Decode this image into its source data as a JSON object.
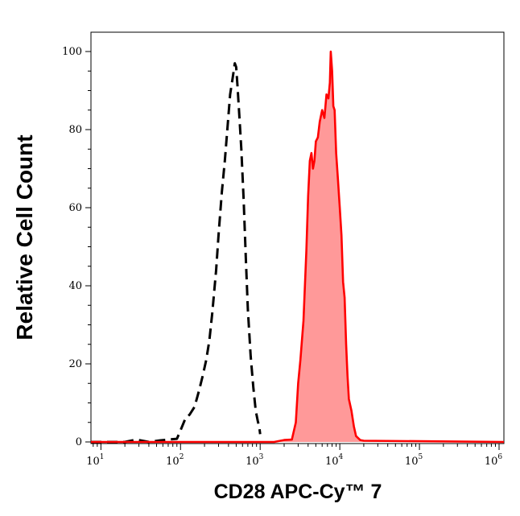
{
  "chart_data": {
    "type": "area",
    "xscale": "log",
    "xlabel": "CD28 APC-Cy™ 7",
    "ylabel": "Relative Cell Count",
    "xlim": [
      7.5,
      1150000
    ],
    "ylim": [
      0,
      100
    ],
    "grid": false,
    "x_ticks": [
      {
        "value": 10,
        "base": "10",
        "exp": "1"
      },
      {
        "value": 100,
        "base": "10",
        "exp": "2"
      },
      {
        "value": 1000,
        "base": "10",
        "exp": "3"
      },
      {
        "value": 10000,
        "base": "10",
        "exp": "4"
      },
      {
        "value": 100000,
        "base": "10",
        "exp": "5"
      },
      {
        "value": 1000000,
        "base": "10",
        "exp": "6"
      }
    ],
    "y_ticks": [
      0,
      20,
      40,
      60,
      80,
      100
    ],
    "series": [
      {
        "style": "dashed-outline",
        "color": "#000000",
        "points": [
          [
            7.5,
            0
          ],
          [
            20,
            0
          ],
          [
            28,
            0.6
          ],
          [
            40,
            0
          ],
          [
            55,
            0.4
          ],
          [
            70,
            0.6
          ],
          [
            90,
            0.8
          ],
          [
            100,
            3
          ],
          [
            115,
            6
          ],
          [
            130,
            7
          ],
          [
            150,
            9
          ],
          [
            170,
            13
          ],
          [
            190,
            17
          ],
          [
            210,
            21
          ],
          [
            230,
            26
          ],
          [
            250,
            33
          ],
          [
            280,
            44
          ],
          [
            300,
            53
          ],
          [
            330,
            64
          ],
          [
            360,
            72
          ],
          [
            390,
            81
          ],
          [
            420,
            89
          ],
          [
            450,
            93
          ],
          [
            480,
            97
          ],
          [
            500,
            96
          ],
          [
            520,
            91
          ],
          [
            550,
            83
          ],
          [
            580,
            75
          ],
          [
            620,
            62
          ],
          [
            660,
            47
          ],
          [
            700,
            34
          ],
          [
            760,
            22
          ],
          [
            820,
            14
          ],
          [
            880,
            8
          ],
          [
            930,
            5.5
          ],
          [
            980,
            3.5
          ],
          [
            1000,
            2
          ]
        ]
      },
      {
        "style": "filled",
        "color": "#ff0000",
        "fill": "#ff9999",
        "points": [
          [
            7.5,
            0
          ],
          [
            1500,
            0
          ],
          [
            2000,
            0.5
          ],
          [
            2500,
            0.6
          ],
          [
            2800,
            5
          ],
          [
            3000,
            15
          ],
          [
            3200,
            21
          ],
          [
            3500,
            31
          ],
          [
            3800,
            49
          ],
          [
            4000,
            63
          ],
          [
            4200,
            72
          ],
          [
            4400,
            74
          ],
          [
            4600,
            70
          ],
          [
            4800,
            72
          ],
          [
            5000,
            77
          ],
          [
            5300,
            78
          ],
          [
            5600,
            82
          ],
          [
            6000,
            85
          ],
          [
            6400,
            83
          ],
          [
            6800,
            89
          ],
          [
            7200,
            88
          ],
          [
            7500,
            92
          ],
          [
            7700,
            100
          ],
          [
            8000,
            95
          ],
          [
            8300,
            86
          ],
          [
            8600,
            85
          ],
          [
            9000,
            74
          ],
          [
            9500,
            67
          ],
          [
            10000,
            60
          ],
          [
            10500,
            53
          ],
          [
            11000,
            41
          ],
          [
            11500,
            37
          ],
          [
            12000,
            25
          ],
          [
            12500,
            17
          ],
          [
            13000,
            11
          ],
          [
            14000,
            8
          ],
          [
            15000,
            4
          ],
          [
            16000,
            1.5
          ],
          [
            18000,
            0.5
          ],
          [
            20000,
            0.3
          ],
          [
            1150000,
            0
          ]
        ]
      }
    ]
  }
}
